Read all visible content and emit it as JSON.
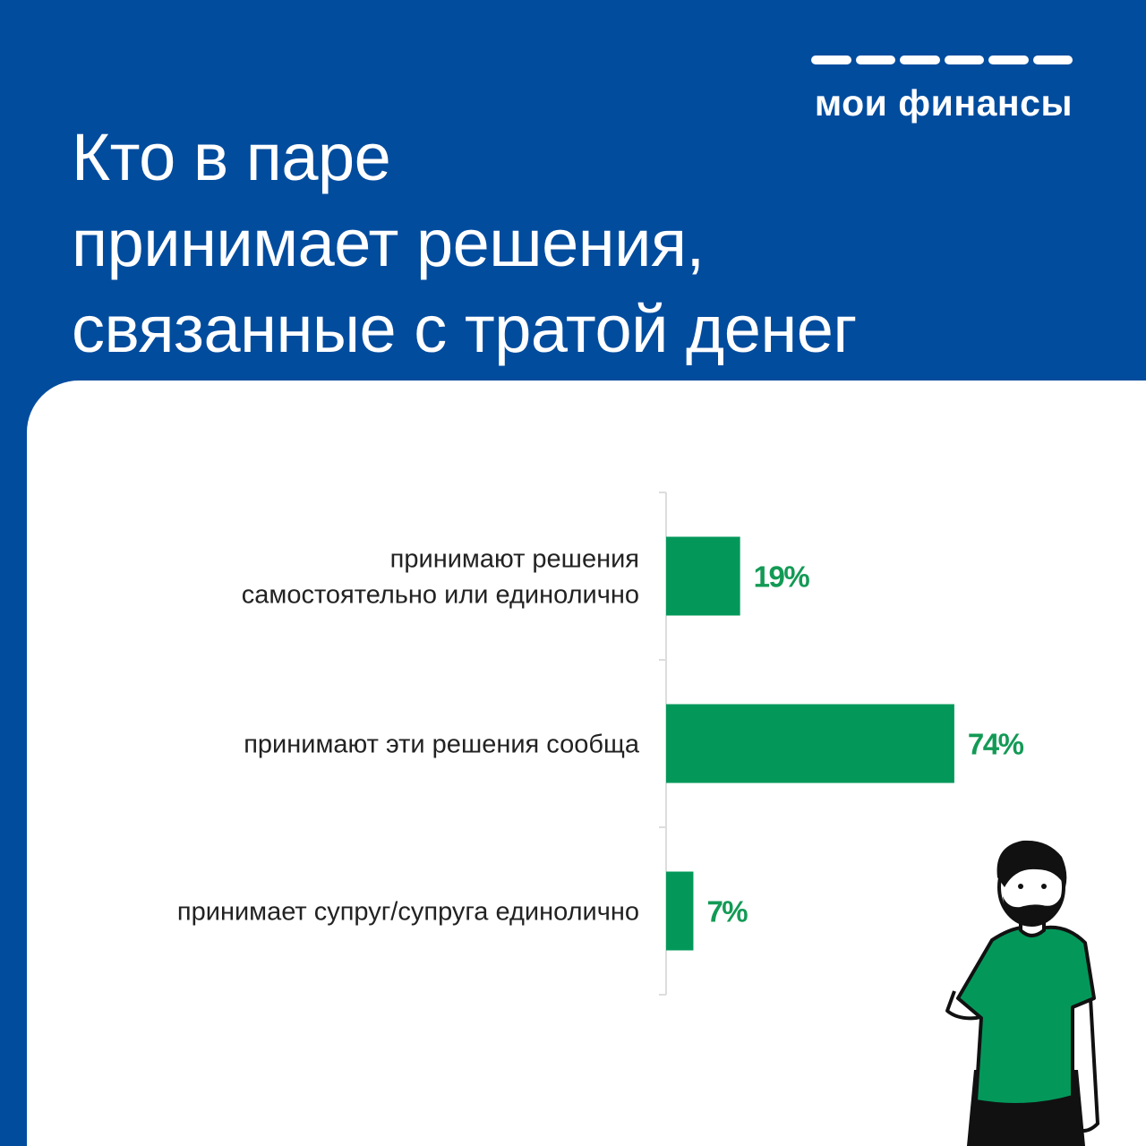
{
  "brand": {
    "name": "мои финансы"
  },
  "title_lines": [
    "Кто в паре",
    "принимает решения,",
    "связанные с тратой денег"
  ],
  "colors": {
    "background": "#024c9e",
    "panel": "#ffffff",
    "bar": "#03985a",
    "value_text": "#139a55",
    "axis": "#dddddd"
  },
  "chart_data": {
    "type": "bar",
    "orientation": "horizontal",
    "categories": [
      [
        "принимают решения",
        "самостоятельно или единолично"
      ],
      [
        "принимают эти решения сообща"
      ],
      [
        "принимает супруг/супруга единолично"
      ]
    ],
    "values": [
      19,
      74,
      7
    ],
    "value_labels": [
      "19%",
      "74%",
      "7%"
    ],
    "unit": "%",
    "xlim": [
      0,
      100
    ],
    "grid": false,
    "legend": "none"
  },
  "illustration": {
    "name": "man-in-green-tshirt"
  }
}
